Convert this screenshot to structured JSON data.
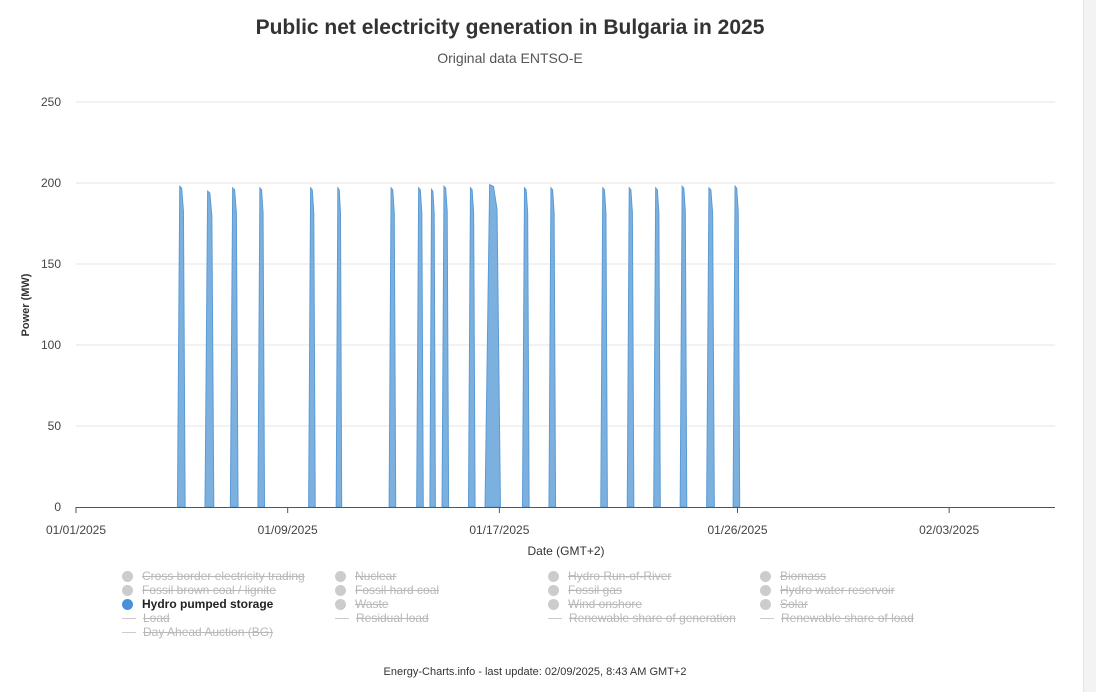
{
  "title": "Public net electricity generation in Bulgaria in 2025",
  "subtitle": "Original data ENTSO-E",
  "footer": "Energy-Charts.info - last update: 02/09/2025, 8:43 AM GMT+2",
  "chart_data": {
    "type": "area",
    "xlabel": "Date (GMT+2)",
    "ylabel": "Power (MW)",
    "ylim": [
      0,
      250
    ],
    "yticks": [
      0,
      50,
      100,
      150,
      200,
      250
    ],
    "xlim": [
      "2025-01-01",
      "2025-02-07"
    ],
    "xticks": [
      {
        "date": "2025-01-01",
        "label": "01/01/2025"
      },
      {
        "date": "2025-01-09",
        "label": "01/09/2025"
      },
      {
        "date": "2025-01-17",
        "label": "01/17/2025"
      },
      {
        "date": "2025-01-26",
        "label": "01/26/2025"
      },
      {
        "date": "2025-02-03",
        "label": "02/03/2025"
      }
    ],
    "grid": true,
    "series": [
      {
        "name": "Hydro pumped storage",
        "color": "#7cb0df",
        "pulses": [
          {
            "start": "2025-01-04 20:00",
            "end": "2025-01-05 03:00",
            "peak": 198
          },
          {
            "start": "2025-01-05 21:00",
            "end": "2025-01-06 05:00",
            "peak": 195
          },
          {
            "start": "2025-01-06 20:00",
            "end": "2025-01-07 03:00",
            "peak": 197
          },
          {
            "start": "2025-01-07 21:00",
            "end": "2025-01-08 03:00",
            "peak": 197
          },
          {
            "start": "2025-01-09 19:00",
            "end": "2025-01-10 01:00",
            "peak": 197
          },
          {
            "start": "2025-01-10 20:00",
            "end": "2025-01-11 01:00",
            "peak": 197
          },
          {
            "start": "2025-01-12 20:00",
            "end": "2025-01-13 02:00",
            "peak": 197
          },
          {
            "start": "2025-01-13 21:00",
            "end": "2025-01-14 03:00",
            "peak": 197
          },
          {
            "start": "2025-01-14 09:00",
            "end": "2025-01-14 14:00",
            "peak": 196
          },
          {
            "start": "2025-01-14 20:00",
            "end": "2025-01-15 02:00",
            "peak": 198
          },
          {
            "start": "2025-01-15 20:00",
            "end": "2025-01-16 02:00",
            "peak": 197
          },
          {
            "start": "2025-01-16 11:00",
            "end": "2025-01-17 01:00",
            "peak": 199
          },
          {
            "start": "2025-01-17 21:00",
            "end": "2025-01-18 03:00",
            "peak": 197
          },
          {
            "start": "2025-01-18 21:00",
            "end": "2025-01-19 03:00",
            "peak": 197
          },
          {
            "start": "2025-01-20 20:00",
            "end": "2025-01-21 02:00",
            "peak": 197
          },
          {
            "start": "2025-01-21 20:00",
            "end": "2025-01-22 02:00",
            "peak": 197
          },
          {
            "start": "2025-01-22 20:00",
            "end": "2025-01-23 02:00",
            "peak": 197
          },
          {
            "start": "2025-01-23 20:00",
            "end": "2025-01-24 02:00",
            "peak": 198
          },
          {
            "start": "2025-01-24 20:00",
            "end": "2025-01-25 03:00",
            "peak": 197
          },
          {
            "start": "2025-01-25 20:00",
            "end": "2025-01-26 02:00",
            "peak": 198
          }
        ]
      }
    ]
  },
  "legend": {
    "items": [
      {
        "label": "Cross border electricity trading",
        "kind": "dot",
        "active": false
      },
      {
        "label": "Nuclear",
        "kind": "dot",
        "active": false
      },
      {
        "label": "Hydro Run-of-River",
        "kind": "dot",
        "active": false
      },
      {
        "label": "Biomass",
        "kind": "dot",
        "active": false
      },
      {
        "label": "Fossil brown coal / lignite",
        "kind": "dot",
        "active": false
      },
      {
        "label": "Fossil hard coal",
        "kind": "dot",
        "active": false
      },
      {
        "label": "Fossil gas",
        "kind": "dot",
        "active": false
      },
      {
        "label": "Hydro water reservoir",
        "kind": "dot",
        "active": false
      },
      {
        "label": "Hydro pumped storage",
        "kind": "dot",
        "active": true
      },
      {
        "label": "Waste",
        "kind": "dot",
        "active": false
      },
      {
        "label": "Wind onshore",
        "kind": "dot",
        "active": false
      },
      {
        "label": "Solar",
        "kind": "dot",
        "active": false
      },
      {
        "label": "Load",
        "kind": "line",
        "active": false
      },
      {
        "label": "Residual load",
        "kind": "line",
        "active": false
      },
      {
        "label": "Renewable share of generation",
        "kind": "line",
        "active": false
      },
      {
        "label": "Renewable share of load",
        "kind": "line",
        "active": false
      },
      {
        "label": "Day Ahead Auction (BG)",
        "kind": "line",
        "active": false
      }
    ]
  }
}
